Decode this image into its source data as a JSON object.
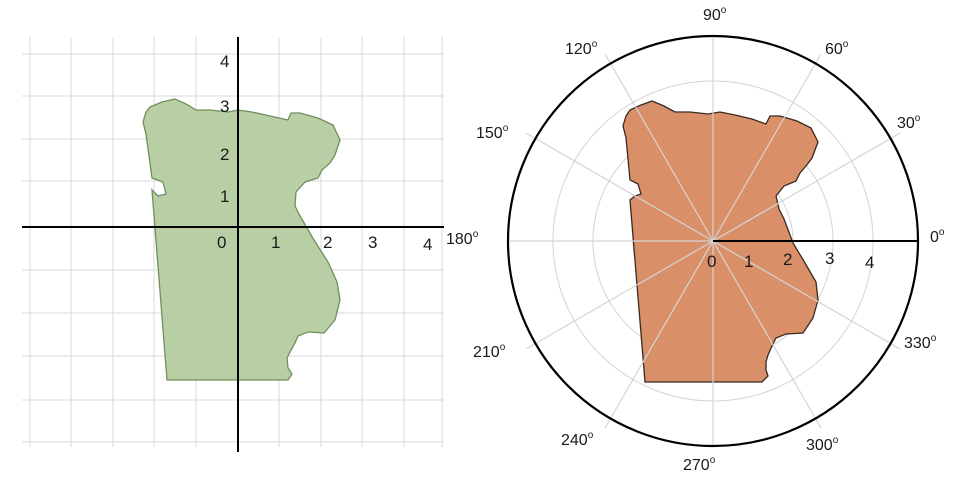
{
  "left_panel": {
    "x_ticks": [
      "0",
      "1",
      "2",
      "3",
      "4"
    ],
    "y_ticks": [
      "1",
      "2",
      "3",
      "4"
    ],
    "region_color": "#b8cfa6",
    "region_stroke": "#6f8f5a"
  },
  "right_panel": {
    "radial_ticks": [
      "0",
      "1",
      "2",
      "3",
      "4"
    ],
    "angle_labels": [
      {
        "value": "0",
        "unit": "o"
      },
      {
        "value": "30",
        "unit": "o"
      },
      {
        "value": "60",
        "unit": "o"
      },
      {
        "value": "90",
        "unit": "o"
      },
      {
        "value": "120",
        "unit": "o"
      },
      {
        "value": "150",
        "unit": "o"
      },
      {
        "value": "180",
        "unit": "o"
      },
      {
        "value": "210",
        "unit": "o"
      },
      {
        "value": "240",
        "unit": "o"
      },
      {
        "value": "270",
        "unit": "o"
      },
      {
        "value": "300",
        "unit": "o"
      },
      {
        "value": "330",
        "unit": "o"
      }
    ],
    "region_color": "#d99068",
    "region_stroke": "#3a2a20"
  }
}
